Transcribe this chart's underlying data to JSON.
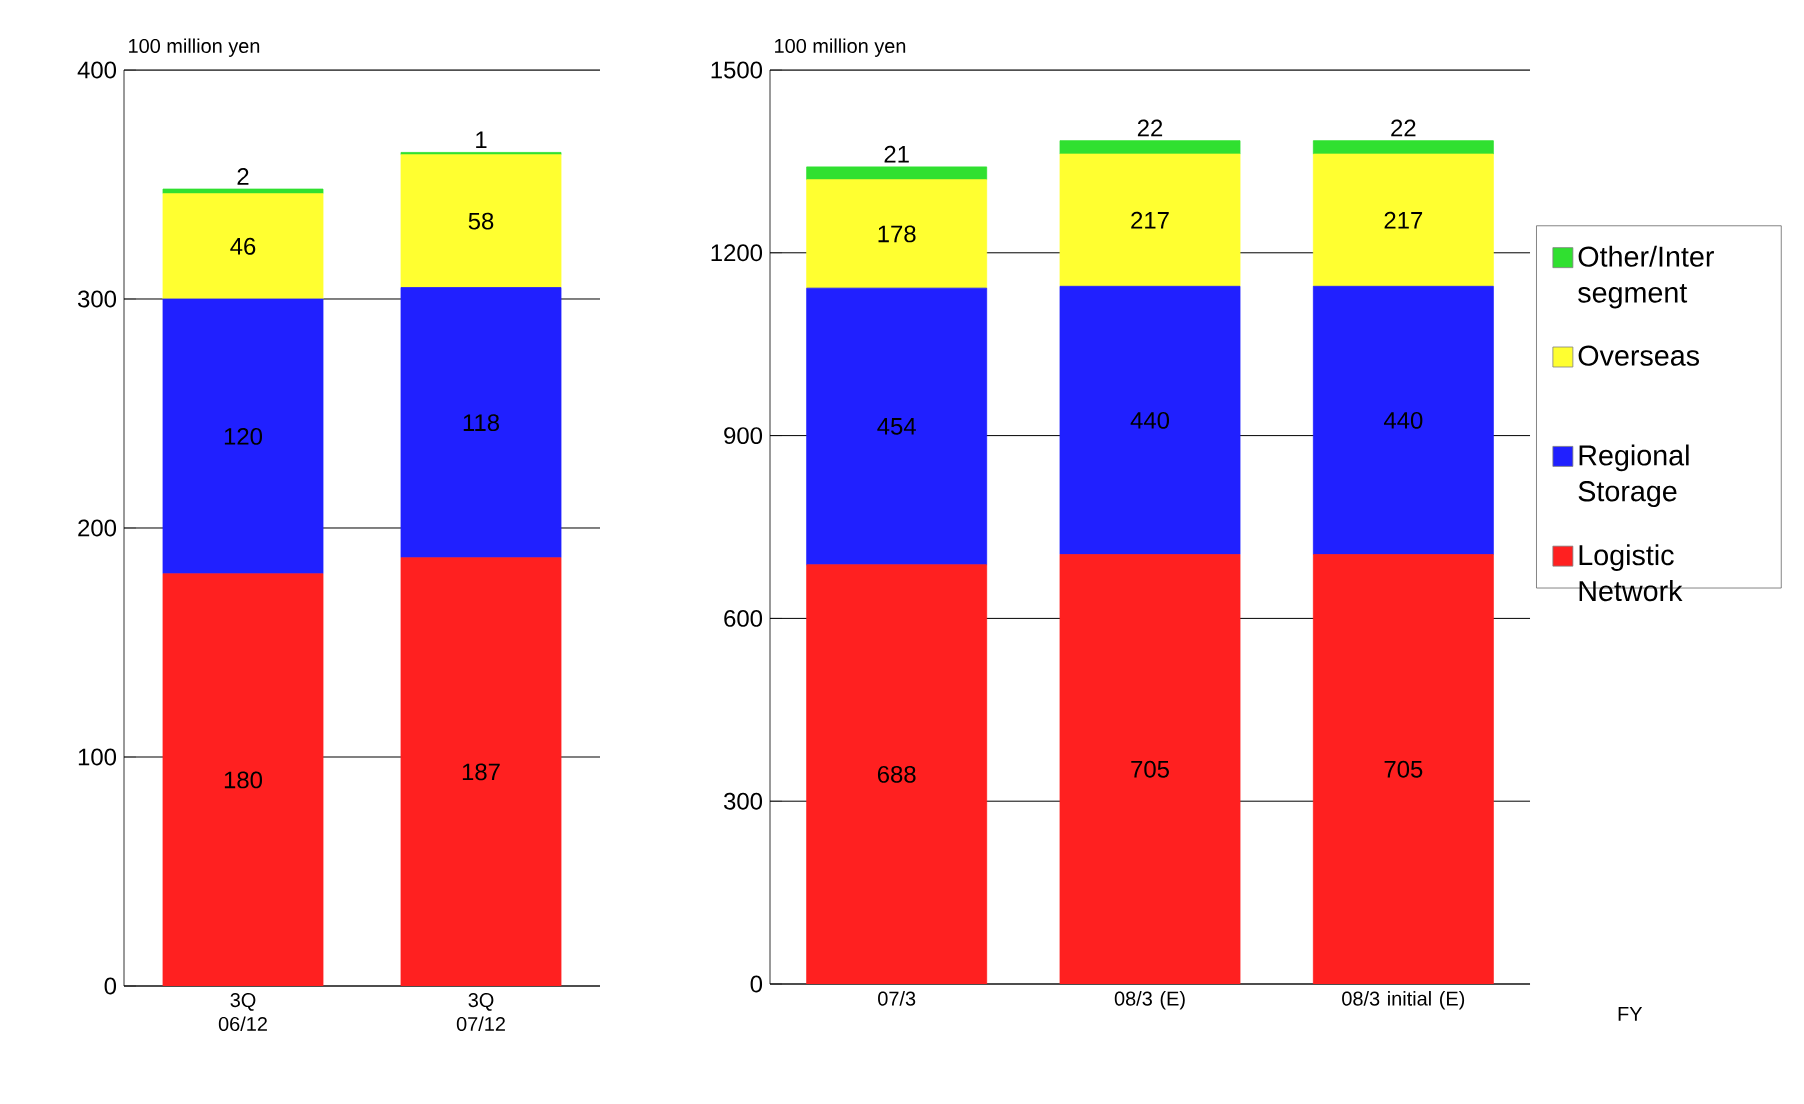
{
  "chart_data": [
    {
      "type": "bar",
      "stacked": true,
      "ylabel": "100 million yen",
      "categories": [
        "3Q 06/12",
        "3Q 07/12"
      ],
      "ylim": [
        0,
        400
      ],
      "yticks": [
        0,
        100,
        200,
        300,
        400
      ],
      "grid": "y",
      "data_labels": true,
      "series": [
        {
          "color": "#ff2020",
          "values": [
            180,
            187
          ]
        },
        {
          "color": "#2020ff",
          "values": [
            120,
            118
          ]
        },
        {
          "color": "#ffff30",
          "values": [
            46,
            58
          ]
        },
        {
          "color": "#30e030",
          "values": [
            2,
            1
          ]
        }
      ]
    },
    {
      "type": "bar",
      "stacked": true,
      "ylabel": "100 million yen",
      "xlabel": "FY",
      "categories": [
        "07/3",
        "08/3 (E)",
        "08/3 initial (E)"
      ],
      "ylim": [
        0,
        1500
      ],
      "yticks": [
        0,
        300,
        600,
        900,
        1200,
        1500
      ],
      "grid": "y",
      "data_labels": true,
      "legend": "right",
      "series": [
        {
          "name": "Logistic Network",
          "color": "#ff2020",
          "values": [
            688,
            705,
            705
          ]
        },
        {
          "name": "Regional Storage",
          "color": "#2020ff",
          "values": [
            454,
            440,
            440
          ]
        },
        {
          "name": "Overseas",
          "color": "#ffff30",
          "values": [
            178,
            217,
            217
          ]
        },
        {
          "name": "Other/Inter segment",
          "color": "#30e030",
          "values": [
            21,
            22,
            22
          ]
        }
      ]
    }
  ]
}
